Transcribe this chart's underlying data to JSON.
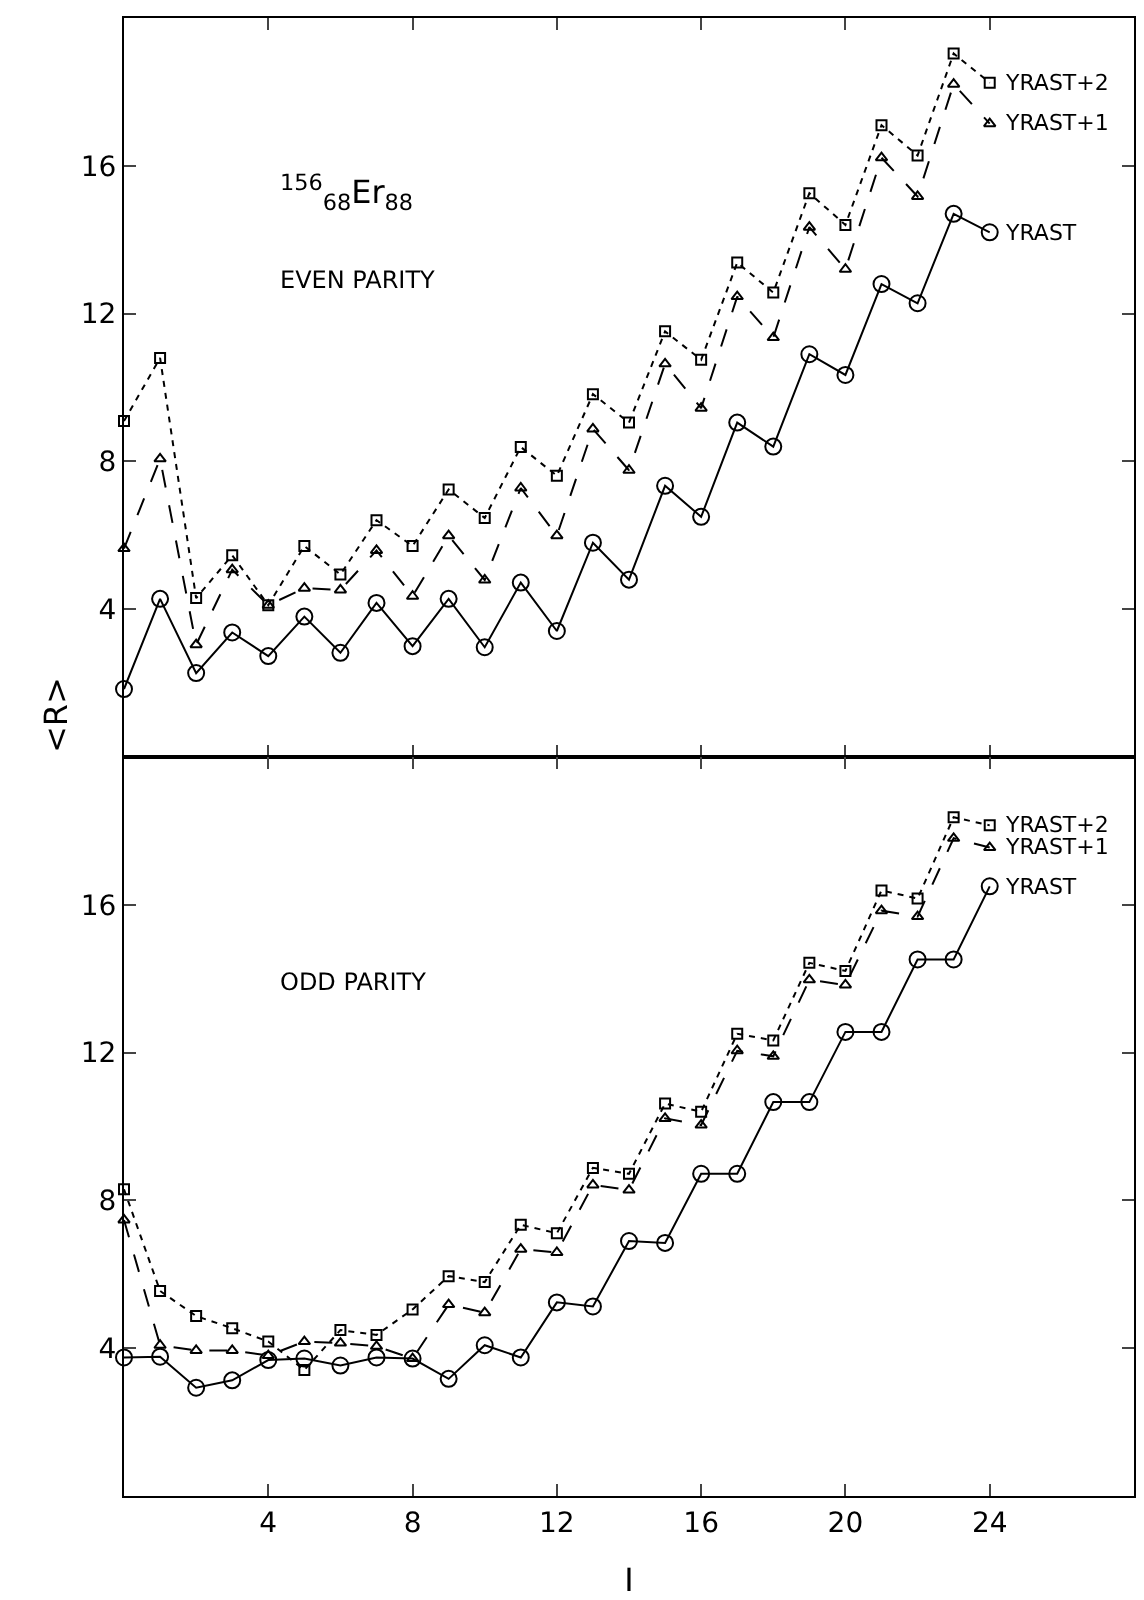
{
  "chart_data": [
    {
      "type": "line",
      "ylabel": "<R>",
      "annotations": [
        "$^{156}$$_{68}$Er$_{88}$",
        "EVEN PARITY"
      ],
      "x": [
        0,
        1,
        2,
        3,
        4,
        5,
        6,
        7,
        8,
        9,
        10,
        11,
        12,
        13,
        14,
        15,
        16,
        17,
        18,
        19,
        20,
        21,
        22,
        23,
        24
      ],
      "xlim": [
        0,
        28
      ],
      "xticks": [
        4,
        8,
        12,
        16,
        20,
        24
      ],
      "ylim": [
        0,
        20
      ],
      "yticks": [
        4,
        8,
        12,
        16
      ],
      "tick_labels": "y",
      "series": [
        {
          "name": "YRAST",
          "color": "#000000",
          "marker": "circle",
          "line_style": "solid",
          "values": [
            1.84,
            4.28,
            2.27,
            3.37,
            2.73,
            3.8,
            2.82,
            4.17,
            3.0,
            4.28,
            2.97,
            4.72,
            3.41,
            5.8,
            4.8,
            7.34,
            6.5,
            9.05,
            8.4,
            10.9,
            10.34,
            12.8,
            12.28,
            14.7,
            14.2
          ]
        },
        {
          "name": "YRAST+1",
          "color": "#000000",
          "marker": "triangle",
          "line_style": "dashed",
          "values": [
            5.64,
            8.07,
            3.04,
            5.07,
            4.11,
            4.57,
            4.52,
            5.59,
            4.35,
            5.99,
            4.79,
            7.28,
            5.99,
            8.88,
            7.76,
            10.64,
            9.44,
            12.46,
            11.35,
            14.34,
            13.2,
            16.22,
            15.17,
            18.21,
            17.14
          ]
        },
        {
          "name": "YRAST+2",
          "color": "#000000",
          "marker": "square",
          "line_style": "dotted",
          "values": [
            9.09,
            10.8,
            4.3,
            5.46,
            4.11,
            5.71,
            4.94,
            6.41,
            5.71,
            7.24,
            6.47,
            8.39,
            7.61,
            9.82,
            9.05,
            11.52,
            10.75,
            13.38,
            12.57,
            15.26,
            14.4,
            17.1,
            16.28,
            19.04,
            18.25
          ]
        }
      ]
    },
    {
      "type": "line",
      "xlabel": "I",
      "annotations": [
        "ODD PARITY"
      ],
      "x": [
        0,
        1,
        2,
        3,
        4,
        5,
        6,
        7,
        8,
        9,
        10,
        11,
        12,
        13,
        14,
        15,
        16,
        17,
        18,
        19,
        20,
        21,
        22,
        23,
        24
      ],
      "xlim": [
        0,
        28
      ],
      "xticks": [
        4,
        8,
        12,
        16,
        20,
        24
      ],
      "ylim": [
        0,
        20
      ],
      "yticks": [
        4,
        8,
        12,
        16
      ],
      "series": [
        {
          "name": "YRAST",
          "color": "#000000",
          "marker": "circle",
          "line_style": "solid",
          "values": [
            3.75,
            3.77,
            2.93,
            3.13,
            3.68,
            3.72,
            3.53,
            3.75,
            3.72,
            3.17,
            4.08,
            3.75,
            5.24,
            5.13,
            6.9,
            6.85,
            8.72,
            8.72,
            10.66,
            10.66,
            12.56,
            12.56,
            14.52,
            14.52,
            16.5
          ]
        },
        {
          "name": "YRAST+1",
          "color": "#000000",
          "marker": "triangle",
          "line_style": "dashed",
          "values": [
            7.47,
            4.08,
            3.94,
            3.94,
            3.8,
            4.18,
            4.14,
            4.05,
            3.72,
            5.18,
            4.96,
            6.68,
            6.59,
            8.42,
            8.28,
            10.22,
            10.04,
            12.05,
            11.9,
            13.97,
            13.83,
            15.84,
            15.68,
            17.8,
            17.55
          ]
        },
        {
          "name": "YRAST+2",
          "color": "#000000",
          "marker": "square",
          "line_style": "dotted",
          "values": [
            8.3,
            5.55,
            4.87,
            4.54,
            4.18,
            3.41,
            4.49,
            4.36,
            5.05,
            5.95,
            5.79,
            7.34,
            7.11,
            8.88,
            8.72,
            10.62,
            10.4,
            12.51,
            12.33,
            14.43,
            14.21,
            16.39,
            16.17,
            18.37,
            18.15
          ]
        }
      ]
    }
  ]
}
